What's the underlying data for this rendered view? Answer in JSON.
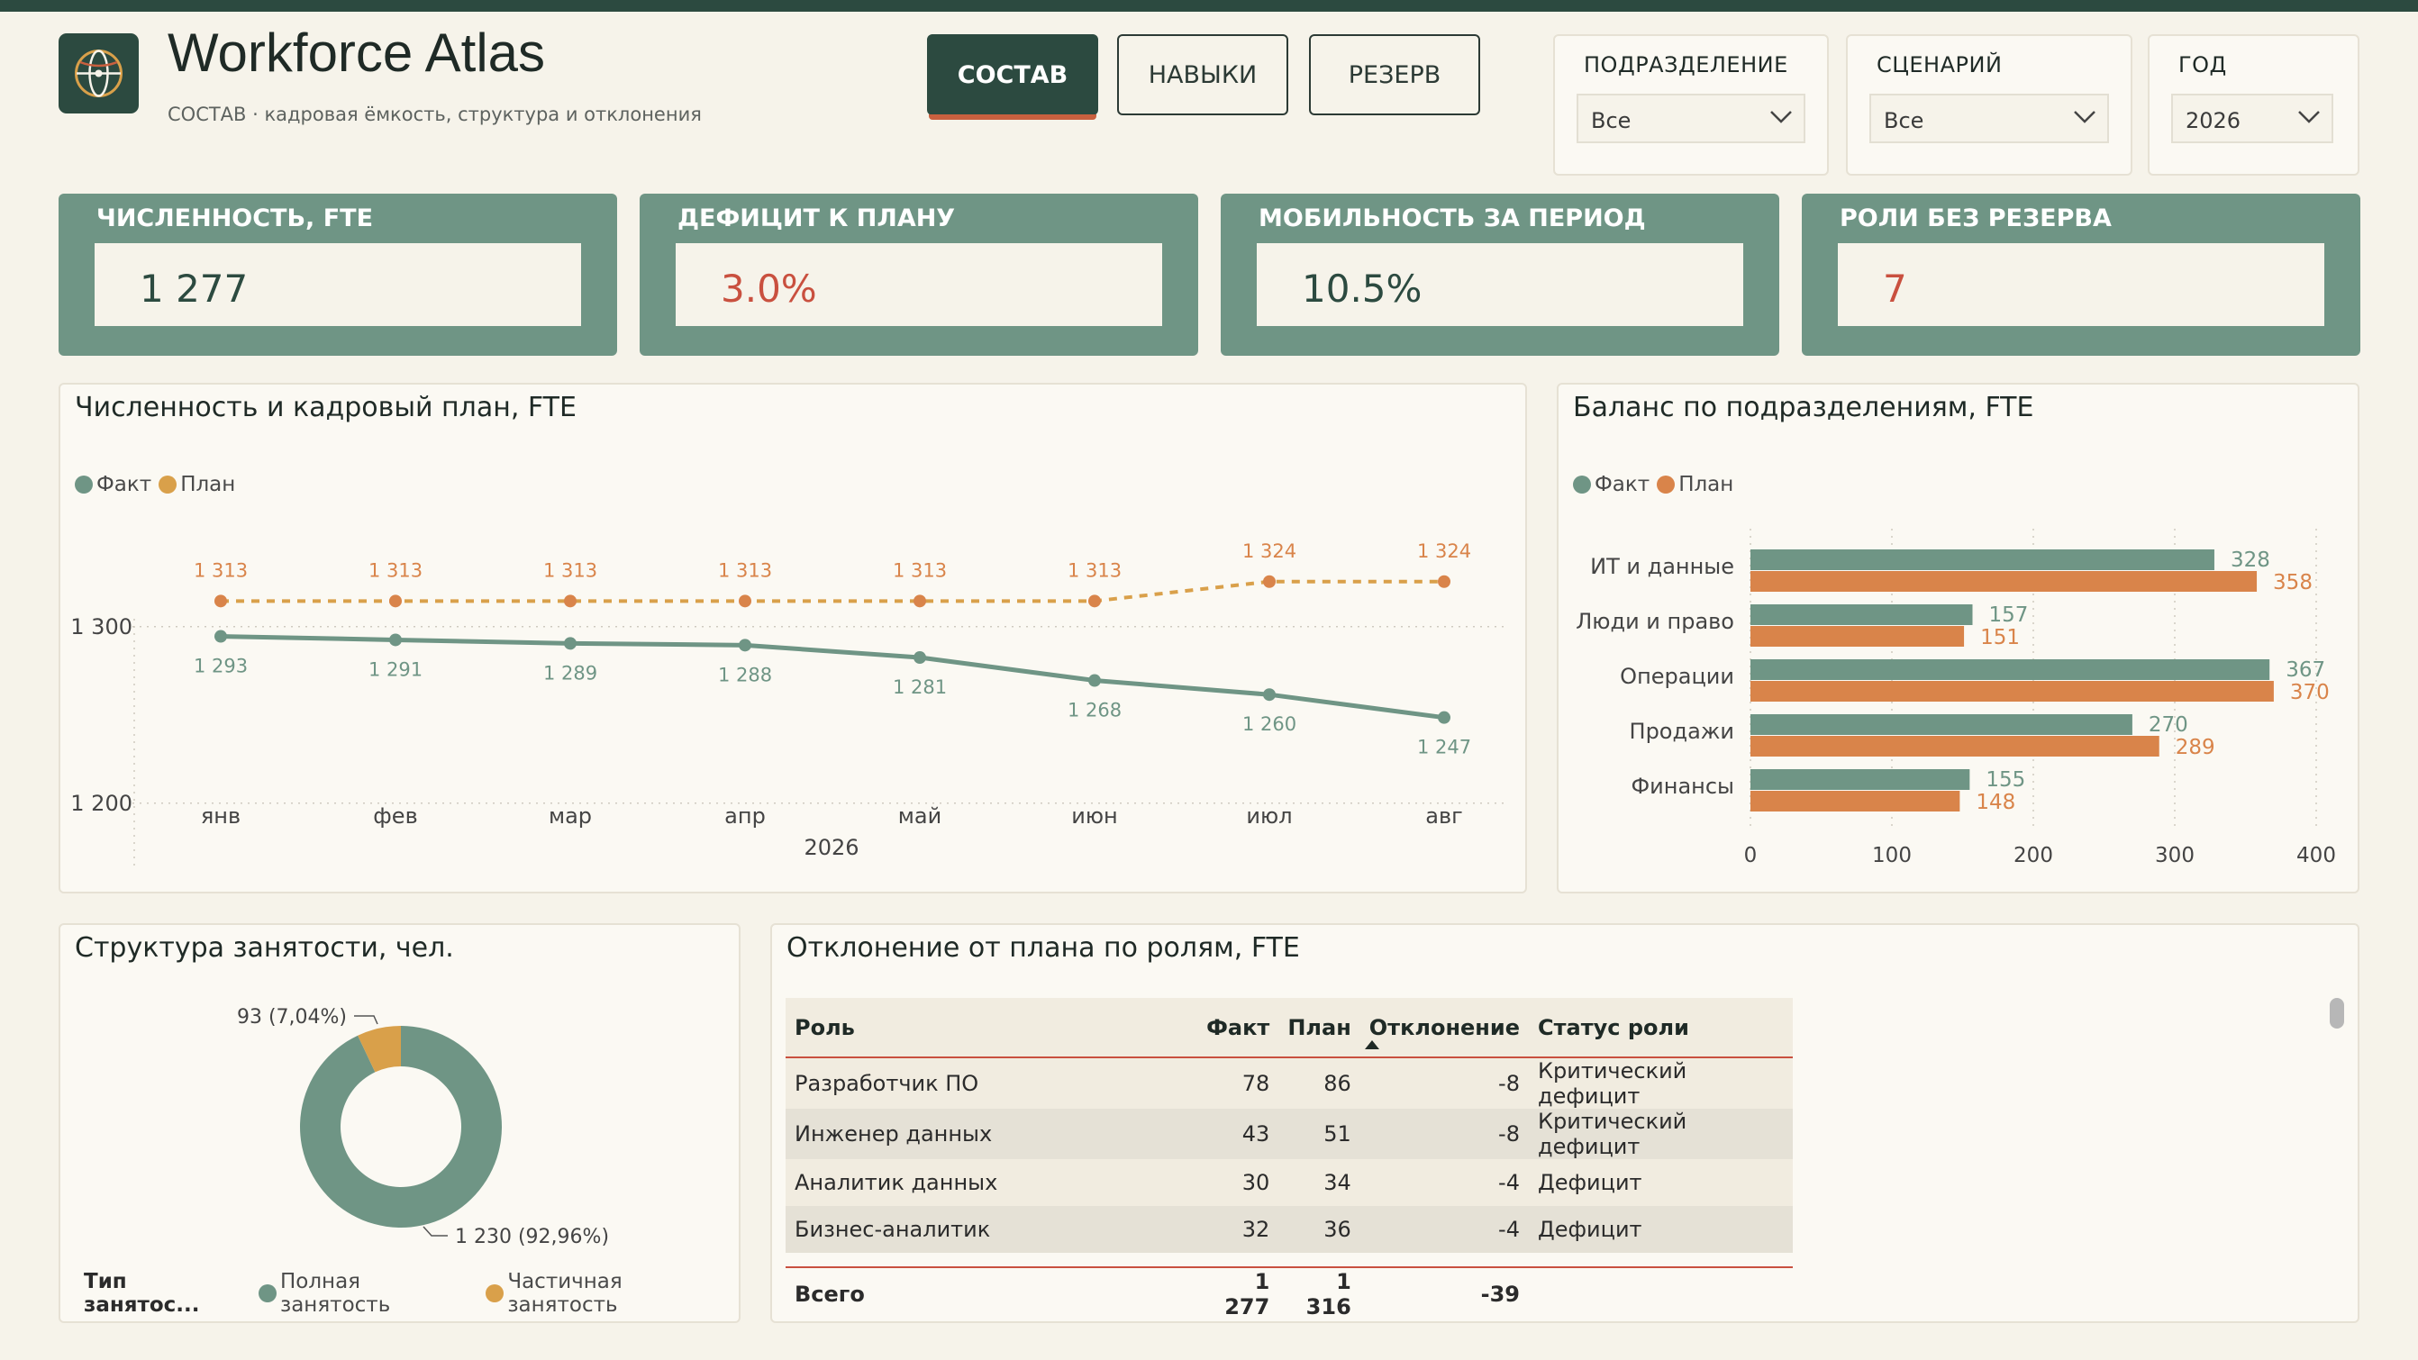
{
  "app": {
    "title": "Workforce Atlas",
    "subtitle": "СОСТАВ · кадровая ёмкость, структура и отклонения"
  },
  "tabs": [
    {
      "label": "СОСТАВ",
      "active": true
    },
    {
      "label": "НАВЫКИ",
      "active": false
    },
    {
      "label": "РЕЗЕРВ",
      "active": false
    }
  ],
  "filters": [
    {
      "label": "ПОДРАЗДЕЛЕНИЕ",
      "value": "Все"
    },
    {
      "label": "СЦЕНАРИЙ",
      "value": "Все"
    },
    {
      "label": "ГОД",
      "value": "2026"
    }
  ],
  "kpis": [
    {
      "label": "ЧИСЛЕННОСТЬ, FTE",
      "value": "1 277"
    },
    {
      "label": "ДЕФИЦИТ К ПЛАНУ",
      "value": "3.0%"
    },
    {
      "label": "МОБИЛЬНОСТЬ ЗА ПЕРИОД",
      "value": "10.5%"
    },
    {
      "label": "РОЛИ БЕЗ РЕЗЕРВА",
      "value": "7"
    }
  ],
  "colors": {
    "fact": "#6f9585",
    "plan_line": "#d9a04a",
    "plan_bar": "#d9844a",
    "accent_dark": "#2c4a40",
    "alert": "#c9503f",
    "warning": "#d9a04a"
  },
  "line_panel": {
    "title": "Численность и кадровый план, FTE",
    "legend": [
      "Факт",
      "План"
    ]
  },
  "bar_panel": {
    "title": "Баланс по подразделениям, FTE",
    "legend": [
      "Факт",
      "План"
    ]
  },
  "donut_panel": {
    "title": "Структура занятости, чел.",
    "legend_title": "Тип занятос...",
    "legend": [
      "Полная занятость",
      "Частичная занятость"
    ]
  },
  "table_panel": {
    "title": "Отклонение от плана по ролям, FTE",
    "columns": [
      "Роль",
      "Факт",
      "План",
      "Отклонение",
      "Статус роли"
    ],
    "rows": [
      {
        "role": "Разработчик ПО",
        "fact": "78",
        "plan": "86",
        "dev": "-8",
        "status": "Критический дефицит",
        "status_kind": "critical"
      },
      {
        "role": "Инженер данных",
        "fact": "43",
        "plan": "51",
        "dev": "-8",
        "status": "Критический дефицит",
        "status_kind": "critical"
      },
      {
        "role": "Аналитик данных",
        "fact": "30",
        "plan": "34",
        "dev": "-4",
        "status": "Дефицит",
        "status_kind": "deficit"
      },
      {
        "role": "Бизнес-аналитик",
        "fact": "32",
        "plan": "36",
        "dev": "-4",
        "status": "Дефицит",
        "status_kind": "deficit"
      }
    ],
    "total": {
      "label": "Всего",
      "fact": "1 277",
      "plan": "1 316",
      "dev": "-39"
    }
  },
  "chart_data": [
    {
      "type": "line",
      "x": [
        "янв",
        "фев",
        "мар",
        "апр",
        "май",
        "июн",
        "июл",
        "авг"
      ],
      "xlabel": "2026",
      "series": [
        {
          "name": "Факт",
          "values": [
            1293,
            1291,
            1289,
            1288,
            1281,
            1268,
            1260,
            1247
          ],
          "labels": [
            "1 293",
            "1 291",
            "1 289",
            "1 288",
            "1 281",
            "1 268",
            "1 260",
            "1 247"
          ]
        },
        {
          "name": "План",
          "values": [
            1313,
            1313,
            1313,
            1313,
            1313,
            1313,
            1324,
            1324
          ],
          "labels": [
            "1 313",
            "1 313",
            "1 313",
            "1 313",
            "1 313",
            "1 313",
            "1 324",
            "1 324"
          ]
        }
      ],
      "yticks": [
        1200,
        1300
      ],
      "ytick_labels": [
        "1 200",
        "1 300"
      ],
      "ylim": [
        1200,
        1340
      ],
      "legend": "top-left"
    },
    {
      "type": "bar",
      "orientation": "horizontal",
      "categories": [
        "ИТ и данные",
        "Люди и право",
        "Операции",
        "Продажи",
        "Финансы"
      ],
      "series": [
        {
          "name": "Факт",
          "values": [
            328,
            157,
            367,
            270,
            155
          ]
        },
        {
          "name": "План",
          "values": [
            358,
            151,
            370,
            289,
            148
          ]
        }
      ],
      "xticks": [
        0,
        100,
        200,
        300,
        400
      ],
      "xlim": [
        0,
        400
      ],
      "legend": "top-left"
    },
    {
      "type": "pie",
      "donut": true,
      "categories": [
        "Полная занятость",
        "Частичная занятость"
      ],
      "values": [
        1230,
        93
      ],
      "labels": [
        "1 230 (92,96%)",
        "93 (7,04%)"
      ]
    }
  ]
}
